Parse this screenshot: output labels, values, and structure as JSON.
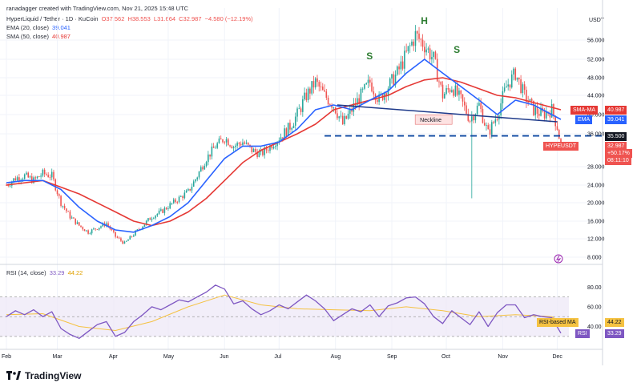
{
  "header": {
    "credit": "ranadagger created with TradingView.com, Nov 21, 2025 15:48 UTC",
    "symbol": "HyperLiquid / Tether · 1D · KuCoin",
    "o": "O37.562",
    "h": "H38.553",
    "l": "L31.664",
    "c": "C32.987",
    "chg": "−4.580 (−12.19%)",
    "ema_label": "EMA (20, close)",
    "ema_value": "39.041",
    "sma_label": "SMA (50, close)",
    "sma_value": "40.987",
    "rsi_label": "RSI (14, close)",
    "rsi_value": "33.29",
    "rsi_ma_value": "44.22"
  },
  "brand": "TradingView",
  "colors": {
    "up": "#26a69a",
    "down": "#ef5350",
    "ema": "#2962ff",
    "sma": "#e53935",
    "rsi": "#7e57c2",
    "rsi_ma": "#f5c242",
    "neckline": "#1e3a8a",
    "support": "#0d47a1"
  },
  "chart_data": {
    "type": "candlestick",
    "title": "HyperLiquid / Tether · 1D · KuCoin",
    "currency": "USDT",
    "y_ticks": [
      "56.000",
      "52.000",
      "48.000",
      "44.000",
      "40.000",
      "36.000",
      "28.000",
      "24.000",
      "20.000",
      "16.000",
      "12.000",
      "8.000"
    ],
    "y_tick_values": [
      56,
      52,
      48,
      44,
      40,
      36,
      28,
      24,
      20,
      16,
      12,
      8
    ],
    "x_ticks": [
      "Feb",
      "Mar",
      "Apr",
      "May",
      "Jun",
      "Jul",
      "Aug",
      "Sep",
      "Oct",
      "Nov",
      "Dec"
    ],
    "x_tick_days": [
      0,
      28,
      59,
      89,
      120,
      150,
      181,
      212,
      242,
      273,
      303
    ],
    "close_path": [
      [
        0,
        24
      ],
      [
        5,
        25.5
      ],
      [
        10,
        26
      ],
      [
        15,
        25
      ],
      [
        20,
        26.5
      ],
      [
        25,
        26
      ],
      [
        30,
        20
      ],
      [
        35,
        17
      ],
      [
        40,
        15
      ],
      [
        45,
        13.5
      ],
      [
        50,
        14.5
      ],
      [
        55,
        15.5
      ],
      [
        60,
        12.5
      ],
      [
        65,
        11
      ],
      [
        70,
        13
      ],
      [
        75,
        15
      ],
      [
        80,
        17
      ],
      [
        85,
        18
      ],
      [
        90,
        19.5
      ],
      [
        95,
        21
      ],
      [
        100,
        22.5
      ],
      [
        105,
        26
      ],
      [
        110,
        30
      ],
      [
        115,
        33
      ],
      [
        120,
        35
      ],
      [
        125,
        33
      ],
      [
        130,
        34
      ],
      [
        135,
        32
      ],
      [
        140,
        31
      ],
      [
        145,
        33
      ],
      [
        150,
        35
      ],
      [
        155,
        37
      ],
      [
        160,
        40
      ],
      [
        165,
        44
      ],
      [
        170,
        47
      ],
      [
        175,
        44
      ],
      [
        180,
        42
      ],
      [
        185,
        38
      ],
      [
        190,
        41
      ],
      [
        195,
        44
      ],
      [
        200,
        47
      ],
      [
        205,
        43
      ],
      [
        210,
        46
      ],
      [
        215,
        49
      ],
      [
        220,
        53
      ],
      [
        225,
        57
      ],
      [
        230,
        55
      ],
      [
        235,
        52
      ],
      [
        240,
        44
      ],
      [
        245,
        46
      ],
      [
        250,
        43
      ],
      [
        255,
        39
      ],
      [
        260,
        42
      ],
      [
        265,
        36
      ],
      [
        270,
        40
      ],
      [
        275,
        46
      ],
      [
        280,
        49
      ],
      [
        285,
        44
      ],
      [
        290,
        41
      ],
      [
        295,
        40
      ],
      [
        300,
        41
      ],
      [
        303,
        37.5
      ],
      [
        305,
        33
      ]
    ],
    "ema_path": [
      [
        0,
        24.5
      ],
      [
        10,
        25
      ],
      [
        20,
        25
      ],
      [
        30,
        23
      ],
      [
        40,
        19
      ],
      [
        50,
        16
      ],
      [
        60,
        14
      ],
      [
        70,
        13.5
      ],
      [
        80,
        15
      ],
      [
        90,
        17
      ],
      [
        100,
        20
      ],
      [
        110,
        25
      ],
      [
        120,
        30
      ],
      [
        130,
        33
      ],
      [
        140,
        33
      ],
      [
        150,
        34
      ],
      [
        160,
        37
      ],
      [
        170,
        41
      ],
      [
        180,
        42
      ],
      [
        190,
        41
      ],
      [
        200,
        43
      ],
      [
        210,
        45
      ],
      [
        220,
        49
      ],
      [
        230,
        52
      ],
      [
        240,
        49
      ],
      [
        250,
        46
      ],
      [
        260,
        43
      ],
      [
        270,
        40
      ],
      [
        280,
        43
      ],
      [
        290,
        42
      ],
      [
        300,
        40
      ],
      [
        305,
        39
      ]
    ],
    "sma_path": [
      [
        0,
        24
      ],
      [
        20,
        25
      ],
      [
        40,
        22
      ],
      [
        60,
        18
      ],
      [
        70,
        16
      ],
      [
        80,
        15
      ],
      [
        90,
        16
      ],
      [
        100,
        18
      ],
      [
        110,
        21
      ],
      [
        120,
        25
      ],
      [
        130,
        29
      ],
      [
        140,
        32
      ],
      [
        150,
        34
      ],
      [
        160,
        36
      ],
      [
        170,
        38
      ],
      [
        180,
        41
      ],
      [
        190,
        42
      ],
      [
        200,
        43
      ],
      [
        210,
        44
      ],
      [
        220,
        46
      ],
      [
        230,
        47.5
      ],
      [
        240,
        48
      ],
      [
        250,
        47
      ],
      [
        260,
        45.5
      ],
      [
        270,
        44
      ],
      [
        280,
        43.5
      ],
      [
        290,
        42.5
      ],
      [
        300,
        41.5
      ],
      [
        305,
        41
      ]
    ],
    "rsi_ticks": [
      "80.00",
      "60.00",
      "40.00"
    ],
    "rsi_tick_values": [
      80,
      60,
      40
    ],
    "rsi_path": [
      [
        0,
        50
      ],
      [
        5,
        56
      ],
      [
        10,
        52
      ],
      [
        15,
        57
      ],
      [
        20,
        50
      ],
      [
        25,
        55
      ],
      [
        30,
        38
      ],
      [
        35,
        32
      ],
      [
        40,
        28
      ],
      [
        45,
        35
      ],
      [
        50,
        42
      ],
      [
        55,
        45
      ],
      [
        60,
        30
      ],
      [
        65,
        34
      ],
      [
        70,
        45
      ],
      [
        75,
        52
      ],
      [
        80,
        60
      ],
      [
        85,
        57
      ],
      [
        90,
        62
      ],
      [
        95,
        67
      ],
      [
        100,
        65
      ],
      [
        105,
        70
      ],
      [
        110,
        75
      ],
      [
        115,
        82
      ],
      [
        120,
        78
      ],
      [
        125,
        63
      ],
      [
        130,
        66
      ],
      [
        135,
        58
      ],
      [
        140,
        52
      ],
      [
        145,
        56
      ],
      [
        150,
        62
      ],
      [
        155,
        58
      ],
      [
        160,
        65
      ],
      [
        165,
        72
      ],
      [
        170,
        66
      ],
      [
        175,
        58
      ],
      [
        180,
        46
      ],
      [
        185,
        52
      ],
      [
        190,
        58
      ],
      [
        195,
        55
      ],
      [
        200,
        62
      ],
      [
        205,
        50
      ],
      [
        210,
        61
      ],
      [
        215,
        64
      ],
      [
        220,
        69
      ],
      [
        225,
        70
      ],
      [
        230,
        63
      ],
      [
        235,
        50
      ],
      [
        240,
        43
      ],
      [
        245,
        56
      ],
      [
        250,
        49
      ],
      [
        255,
        42
      ],
      [
        260,
        55
      ],
      [
        265,
        40
      ],
      [
        270,
        54
      ],
      [
        275,
        62
      ],
      [
        280,
        62
      ],
      [
        285,
        49
      ],
      [
        290,
        52
      ],
      [
        295,
        50
      ],
      [
        300,
        49
      ],
      [
        305,
        33.29
      ]
    ],
    "rsi_ma_path": [
      [
        0,
        52
      ],
      [
        20,
        53
      ],
      [
        40,
        40
      ],
      [
        60,
        36
      ],
      [
        80,
        45
      ],
      [
        100,
        60
      ],
      [
        120,
        72
      ],
      [
        140,
        62
      ],
      [
        160,
        58
      ],
      [
        180,
        57
      ],
      [
        200,
        56
      ],
      [
        220,
        60
      ],
      [
        240,
        56
      ],
      [
        260,
        50
      ],
      [
        280,
        52
      ],
      [
        300,
        50
      ],
      [
        305,
        44.22
      ]
    ],
    "annotations": {
      "left_shoulder": "S",
      "head": "H",
      "right_shoulder": "S",
      "neckline_label": "Neckline",
      "neckline_from": [
        182,
        42
      ],
      "neckline_to": [
        303,
        38.5
      ],
      "support_level": 35.5,
      "support_label": "35.500",
      "wick_low_day": 256,
      "wick_low_value": 21
    },
    "price_tags": {
      "sma": {
        "label": "SMA-MA",
        "value": "40.987",
        "num": 40.987
      },
      "ema": {
        "label": "EMA",
        "value": "39.041",
        "num": 39.041
      },
      "support": {
        "value": "35.500",
        "num": 35.5
      },
      "last": {
        "label": "HYPEUSDT",
        "value": "32.987",
        "chg": "+50.17%",
        "timer": "08:11:10",
        "num": 32.987
      }
    },
    "rsi_tags": {
      "rsi_ma": {
        "label": "RSI-based MA",
        "value": "44.22"
      },
      "rsi": {
        "label": "RSI",
        "value": "33.29"
      }
    },
    "currency_label": "USDT"
  }
}
